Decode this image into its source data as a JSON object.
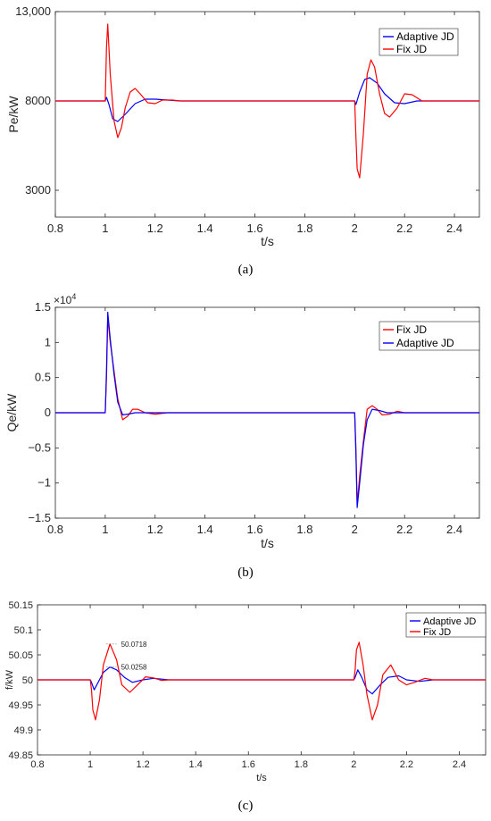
{
  "chart_data": [
    {
      "type": "line",
      "caption": "(a)",
      "xlabel": "t/s",
      "ylabel": "Pe/kW",
      "xlim": [
        0.8,
        2.5
      ],
      "ylim": [
        1500,
        13000
      ],
      "xticks": [
        "0.8",
        "1",
        "1.2",
        "1.4",
        "1.6",
        "1.8",
        "2",
        "2.2",
        "2.4"
      ],
      "yticks": [
        "3000",
        "8000",
        "13,000"
      ],
      "legend_position": "top-right",
      "series": [
        {
          "name": "Adaptive JD",
          "color": "#0000ff",
          "x": [
            0.8,
            1.0,
            1.005,
            1.015,
            1.03,
            1.05,
            1.08,
            1.12,
            1.16,
            1.2,
            1.25,
            1.3,
            2.0,
            2.005,
            2.02,
            2.04,
            2.06,
            2.09,
            2.12,
            2.16,
            2.2,
            2.25,
            2.3,
            2.5
          ],
          "y": [
            8000,
            8000,
            8200,
            7800,
            7000,
            6850,
            7250,
            7850,
            8100,
            8100,
            8050,
            8000,
            8000,
            7800,
            8500,
            9200,
            9300,
            9000,
            8400,
            7900,
            7850,
            8000,
            8000,
            8000
          ]
        },
        {
          "name": "Fix JD",
          "color": "#ff0000",
          "x": [
            0.8,
            1.0,
            1.005,
            1.01,
            1.02,
            1.035,
            1.05,
            1.065,
            1.08,
            1.1,
            1.12,
            1.14,
            1.17,
            1.2,
            1.23,
            1.27,
            1.3,
            1.35,
            2.0,
            2.005,
            2.01,
            2.02,
            2.035,
            2.05,
            2.065,
            2.08,
            2.1,
            2.12,
            2.14,
            2.17,
            2.2,
            2.23,
            2.27,
            2.3,
            2.5
          ],
          "y": [
            8000,
            8000,
            11000,
            12300,
            9500,
            6900,
            5950,
            6500,
            7600,
            8500,
            8700,
            8400,
            7900,
            7850,
            8050,
            8050,
            8000,
            8000,
            8000,
            6000,
            4200,
            3700,
            6200,
            9500,
            10300,
            9900,
            8400,
            7300,
            7100,
            7600,
            8400,
            8350,
            8000,
            8000,
            8000
          ]
        }
      ]
    },
    {
      "type": "line",
      "caption": "(b)",
      "xlabel": "t/s",
      "ylabel": "Qe/kW",
      "exponent": "×10",
      "exponent_power": "4",
      "xlim": [
        0.8,
        2.5
      ],
      "ylim": [
        -1.5,
        1.5
      ],
      "xticks": [
        "0.8",
        "1",
        "1.2",
        "1.4",
        "1.6",
        "1.8",
        "2",
        "2.2",
        "2.4"
      ],
      "yticks": [
        "1.5",
        "1",
        "0.5",
        "0",
        "−0.5",
        "−1",
        "−1.5"
      ],
      "legend_position": "top-right",
      "series": [
        {
          "name": "Fix JD",
          "color": "#ff0000",
          "x": [
            0.8,
            1.0,
            1.005,
            1.01,
            1.02,
            1.035,
            1.05,
            1.07,
            1.09,
            1.11,
            1.13,
            1.16,
            1.2,
            1.25,
            2.0,
            2.005,
            2.01,
            2.02,
            2.035,
            2.05,
            2.07,
            2.09,
            2.11,
            2.14,
            2.17,
            2.2,
            2.25,
            2.5
          ],
          "y": [
            0,
            0,
            0.5,
            1.35,
            1.0,
            0.6,
            0.2,
            -0.1,
            -0.05,
            0.05,
            0.05,
            0,
            -0.02,
            0,
            0,
            -0.5,
            -1.3,
            -0.9,
            -0.4,
            0.05,
            0.1,
            0.05,
            -0.03,
            -0.02,
            0.02,
            0,
            0,
            0
          ]
        },
        {
          "name": "Adaptive JD",
          "color": "#0000ff",
          "x": [
            0.8,
            1.0,
            1.005,
            1.01,
            1.02,
            1.035,
            1.05,
            1.07,
            1.09,
            1.12,
            1.15,
            1.2,
            2.0,
            2.005,
            2.01,
            2.02,
            2.035,
            2.05,
            2.07,
            2.1,
            2.13,
            2.17,
            2.2,
            2.5
          ],
          "y": [
            0,
            0,
            0.6,
            1.43,
            1.05,
            0.55,
            0.15,
            -0.03,
            -0.02,
            0,
            0,
            0,
            0,
            -0.6,
            -1.35,
            -1.0,
            -0.45,
            -0.1,
            0.05,
            0.03,
            0,
            0,
            0,
            0
          ]
        }
      ]
    },
    {
      "type": "line",
      "caption": "(c)",
      "xlabel": "t/s",
      "ylabel": "f/kW",
      "xlim": [
        0.8,
        2.5
      ],
      "ylim": [
        49.85,
        50.15
      ],
      "xticks": [
        "0.8",
        "1",
        "1.2",
        "1.4",
        "1.6",
        "1.8",
        "2",
        "2.2",
        "2.4"
      ],
      "yticks": [
        "50.15",
        "50.1",
        "50.05",
        "50",
        "49.95",
        "49.9",
        "49.85"
      ],
      "legend_position": "top-right",
      "annotations": [
        "50.0718",
        "50.0258"
      ],
      "series": [
        {
          "name": "Adaptive JD",
          "color": "#0000ff",
          "x": [
            0.8,
            1.0,
            1.005,
            1.015,
            1.03,
            1.05,
            1.075,
            1.1,
            1.13,
            1.16,
            1.2,
            1.24,
            1.3,
            2.0,
            2.005,
            2.015,
            2.03,
            2.05,
            2.07,
            2.1,
            2.13,
            2.17,
            2.2,
            2.25,
            2.3,
            2.5
          ],
          "y": [
            50,
            50,
            49.995,
            49.98,
            49.995,
            50.015,
            50.0258,
            50.02,
            50.005,
            49.995,
            50.0,
            50.003,
            50,
            50,
            50.005,
            50.02,
            50.005,
            49.98,
            49.972,
            49.99,
            50.005,
            50.008,
            50.0,
            49.997,
            50,
            50
          ]
        },
        {
          "name": "Fix JD",
          "color": "#ff0000",
          "x": [
            0.8,
            1.0,
            1.005,
            1.01,
            1.02,
            1.035,
            1.05,
            1.075,
            1.1,
            1.12,
            1.15,
            1.18,
            1.21,
            1.24,
            1.27,
            1.3,
            2.0,
            2.005,
            2.01,
            2.02,
            2.035,
            2.05,
            2.07,
            2.09,
            2.11,
            2.14,
            2.17,
            2.2,
            2.23,
            2.27,
            2.3,
            2.5
          ],
          "y": [
            50,
            50,
            49.98,
            49.94,
            49.92,
            49.96,
            50.03,
            50.0718,
            50.04,
            49.99,
            49.975,
            49.99,
            50.006,
            50.004,
            49.999,
            50,
            50,
            50.02,
            50.06,
            50.075,
            50.03,
            49.97,
            49.92,
            49.95,
            50.01,
            50.03,
            50.0,
            49.99,
            49.995,
            50.003,
            50.0,
            50
          ]
        }
      ]
    }
  ]
}
